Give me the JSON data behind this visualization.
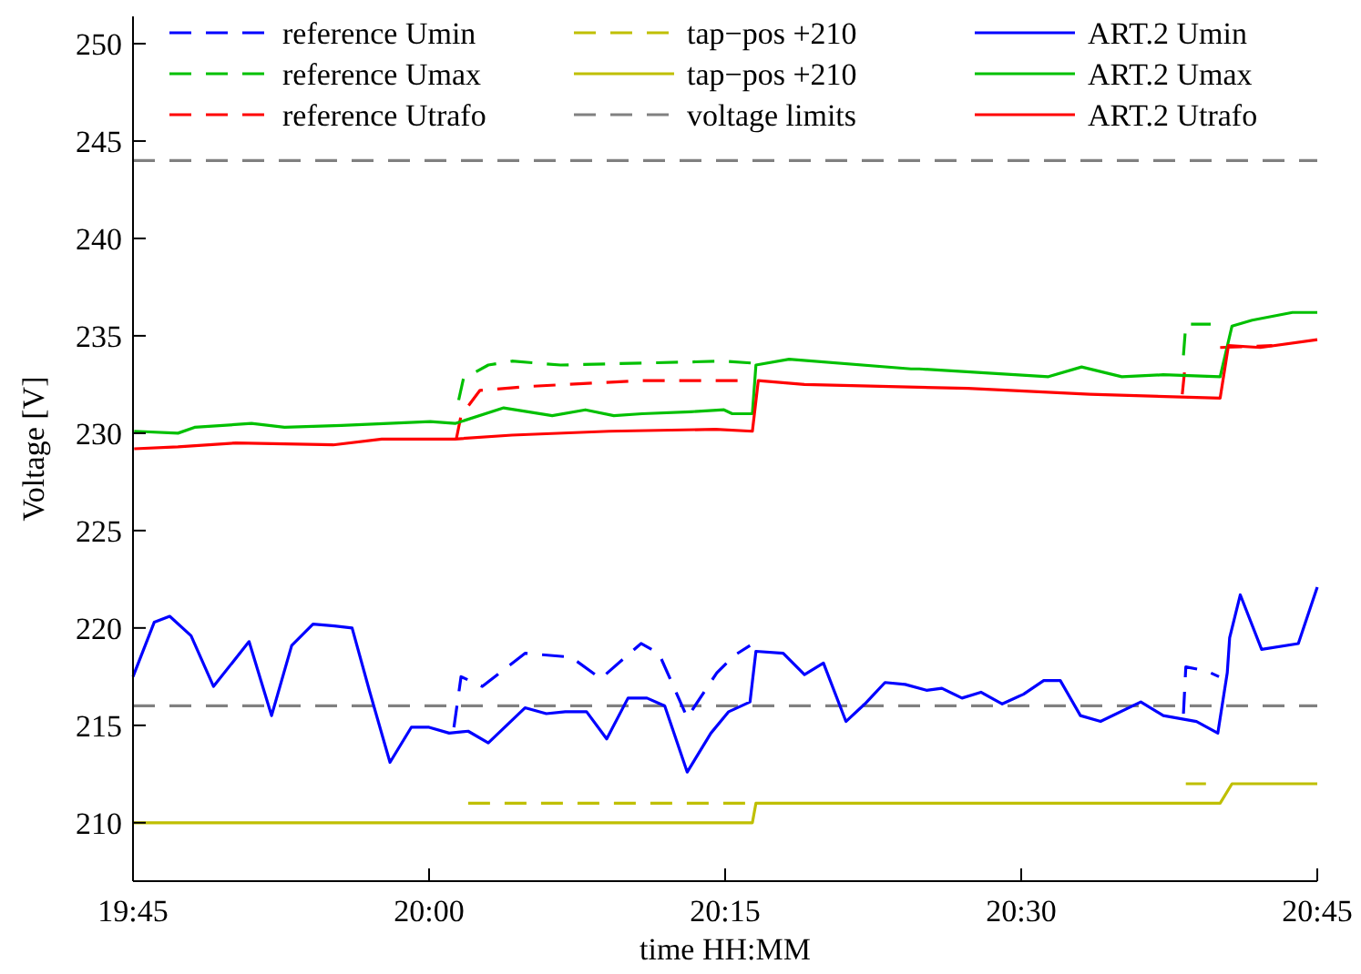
{
  "chart_data": {
    "type": "line",
    "xlabel": "time HH:MM",
    "ylabel": "Voltage [V]",
    "xlim": [
      19.75,
      20.75
    ],
    "xticks": [
      {
        "value": 19.75,
        "label": "19:45"
      },
      {
        "value": 20.0,
        "label": "20:00"
      },
      {
        "value": 20.25,
        "label": "20:15"
      },
      {
        "value": 20.5,
        "label": "20:30"
      },
      {
        "value": 20.75,
        "label": "20:45"
      }
    ],
    "ylim": [
      207,
      251.4
    ],
    "yticks": [
      210,
      215,
      220,
      225,
      230,
      235,
      240,
      245,
      250
    ],
    "grid": false,
    "legend": "top",
    "ref_lines": [
      {
        "axis": "y",
        "value": 216,
        "color": "#808080",
        "line_style": "dashed"
      }
    ],
    "series": [
      {
        "name": "reference Umin",
        "color": "#0000ff",
        "line_style": "dashed",
        "x": [
          20.021,
          20.027,
          20.045,
          20.081,
          20.12,
          20.145,
          20.179,
          20.194,
          20.218,
          20.243,
          20.258,
          20.271,
          20.45,
          20.637,
          20.639,
          20.656,
          20.667
        ],
        "values": [
          214.9,
          217.5,
          217.0,
          218.7,
          218.5,
          217.4,
          219.2,
          218.7,
          215.4,
          217.7,
          218.6,
          219.1,
          null,
          215.6,
          218.0,
          217.8,
          217.5
        ]
      },
      {
        "name": "reference Umax",
        "color": "#00c000",
        "line_style": "dashed",
        "x": [
          20.025,
          20.029,
          20.05,
          20.07,
          20.111,
          20.18,
          20.249,
          20.273,
          20.45,
          20.637,
          20.639,
          20.66
        ],
        "values": [
          231.7,
          232.8,
          233.5,
          233.7,
          233.5,
          233.6,
          233.7,
          233.6,
          null,
          234.0,
          235.6,
          235.6
        ]
      },
      {
        "name": "reference Utrafo",
        "color": "#ff0000",
        "line_style": "dashed",
        "x": [
          20.023,
          20.027,
          20.043,
          20.084,
          20.18,
          20.269,
          20.45,
          20.636,
          20.638,
          20.65,
          20.668,
          20.712
        ],
        "values": [
          229.7,
          230.9,
          232.2,
          232.4,
          232.7,
          232.7,
          null,
          232.0,
          233.2,
          null,
          234.4,
          234.5
        ]
      },
      {
        "name": "tap−pos +210",
        "color": "#bfbf00",
        "line_style": "dashed",
        "x": [
          20.033,
          20.273,
          20.45,
          20.639,
          20.656
        ],
        "values": [
          211,
          211,
          null,
          212,
          212
        ]
      },
      {
        "name": "tap−pos +210",
        "color": "#bfbf00",
        "line_style": "solid",
        "x": [
          19.75,
          20.273,
          20.276,
          20.668,
          20.678,
          20.75
        ],
        "values": [
          210,
          210,
          211,
          211,
          212,
          212
        ]
      },
      {
        "name": "voltage limits",
        "color": "#808080",
        "line_style": "dashed",
        "x": [
          19.75,
          20.75
        ],
        "values": [
          244,
          244
        ]
      },
      {
        "name": "ART.2 Umin",
        "color": "#0000ff",
        "line_style": "solid",
        "x": [
          19.75,
          19.768,
          19.781,
          19.799,
          19.818,
          19.848,
          19.867,
          19.884,
          19.902,
          19.92,
          19.935,
          19.95,
          19.967,
          19.985,
          20.0,
          20.017,
          20.033,
          20.05,
          20.081,
          20.099,
          20.115,
          20.133,
          20.15,
          20.168,
          20.184,
          20.199,
          20.218,
          20.238,
          20.253,
          20.271,
          20.276,
          20.299,
          20.317,
          20.333,
          20.352,
          20.368,
          20.385,
          20.402,
          20.42,
          20.433,
          20.45,
          20.466,
          20.484,
          20.502,
          20.519,
          20.533,
          20.55,
          20.567,
          20.601,
          20.62,
          20.648,
          20.666,
          20.674,
          20.676,
          20.685,
          20.703,
          20.734,
          20.75
        ],
        "values": [
          217.5,
          220.3,
          220.6,
          219.6,
          217.0,
          219.3,
          215.5,
          219.1,
          220.2,
          220.1,
          220.0,
          216.7,
          213.1,
          214.9,
          214.9,
          214.6,
          214.7,
          214.1,
          215.9,
          215.6,
          215.7,
          215.7,
          214.3,
          216.4,
          216.4,
          216.0,
          212.6,
          214.6,
          215.7,
          216.2,
          218.8,
          218.7,
          217.6,
          218.2,
          215.2,
          216.1,
          217.2,
          217.1,
          216.8,
          216.9,
          216.4,
          216.7,
          216.1,
          216.6,
          217.3,
          217.3,
          215.5,
          215.2,
          216.2,
          215.5,
          215.2,
          214.6,
          217.7,
          219.5,
          221.7,
          218.9,
          219.2,
          222.1
        ]
      },
      {
        "name": "ART.2 Umax",
        "color": "#00c000",
        "line_style": "solid",
        "x": [
          19.751,
          19.788,
          19.802,
          19.85,
          19.878,
          19.926,
          20.001,
          20.022,
          20.063,
          20.104,
          20.132,
          20.156,
          20.18,
          20.221,
          20.249,
          20.256,
          20.273,
          20.276,
          20.304,
          20.407,
          20.414,
          20.523,
          20.551,
          20.585,
          20.62,
          20.668,
          20.678,
          20.695,
          20.729,
          20.75
        ],
        "values": [
          230.1,
          230.0,
          230.3,
          230.5,
          230.3,
          230.4,
          230.6,
          230.5,
          231.3,
          230.9,
          231.2,
          230.9,
          231.0,
          231.1,
          231.2,
          231.0,
          231.0,
          233.5,
          233.8,
          233.3,
          233.3,
          232.9,
          233.4,
          232.9,
          233.0,
          232.9,
          235.5,
          235.8,
          236.2,
          236.2
        ]
      },
      {
        "name": "ART.2 Utrafo",
        "color": "#ff0000",
        "line_style": "solid",
        "x": [
          19.751,
          19.788,
          19.837,
          19.919,
          19.96,
          20.022,
          20.07,
          20.152,
          20.242,
          20.273,
          20.278,
          20.317,
          20.455,
          20.558,
          20.668,
          20.675,
          20.702,
          20.75
        ],
        "values": [
          229.2,
          229.3,
          229.5,
          229.4,
          229.7,
          229.7,
          229.9,
          230.1,
          230.2,
          230.1,
          232.7,
          232.5,
          232.3,
          232.0,
          231.8,
          234.5,
          234.4,
          234.8
        ]
      }
    ]
  }
}
